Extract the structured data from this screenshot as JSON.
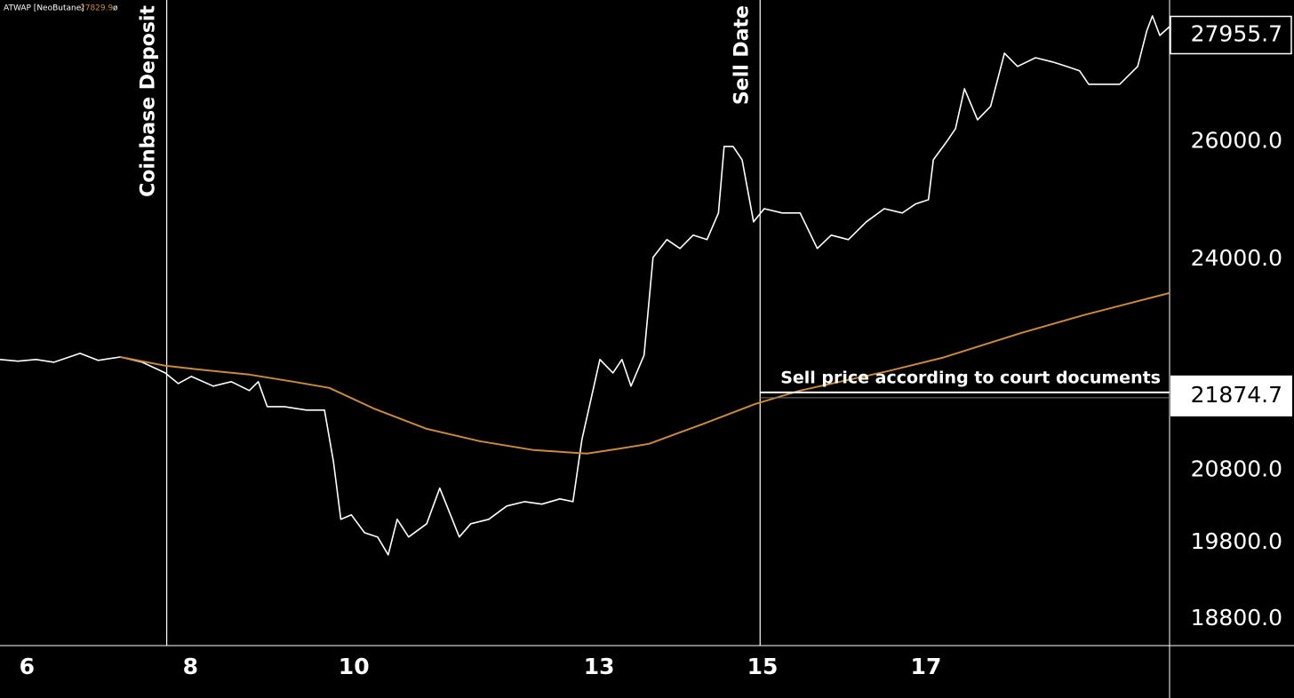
{
  "chart_data": {
    "type": "line",
    "log_y": true,
    "grid": false,
    "background": "#000000",
    "indicator_value": 27829.9,
    "indicator_symbol": "ø",
    "xlim": [
      5.67,
      19.98
    ],
    "xticks": [
      6,
      8,
      10,
      13,
      15,
      17
    ],
    "ylim": [
      18460,
      28630
    ],
    "yticks": [
      {
        "value": 18800,
        "label": "18800.0"
      },
      {
        "value": 19800,
        "label": "19800.0"
      },
      {
        "value": 20800,
        "label": "20800.0"
      },
      {
        "value": 24000,
        "label": "24000.0"
      },
      {
        "value": 26000,
        "label": "26000.0"
      }
    ],
    "last_price": 27955.7,
    "series": [
      {
        "color": "#ffffff",
        "x": [
          5.67,
          5.89,
          6.11,
          6.33,
          6.65,
          6.87,
          7.14,
          7.41,
          7.69,
          7.85,
          8.01,
          8.28,
          8.5,
          8.72,
          8.83,
          8.94,
          9.15,
          9.42,
          9.64,
          9.75,
          9.84,
          9.97,
          10.13,
          10.29,
          10.42,
          10.53,
          10.67,
          10.89,
          11.05,
          11.16,
          11.29,
          11.43,
          11.65,
          11.87,
          12.09,
          12.3,
          12.52,
          12.68,
          12.79,
          12.9,
          13.01,
          13.17,
          13.28,
          13.39,
          13.55,
          13.66,
          13.83,
          13.99,
          14.15,
          14.32,
          14.46,
          14.53,
          14.64,
          14.75,
          14.89,
          15.02,
          15.24,
          15.46,
          15.67,
          15.84,
          16.05,
          16.27,
          16.49,
          16.71,
          16.87,
          17.03,
          17.09,
          17.25,
          17.36,
          17.47,
          17.63,
          17.79,
          17.96,
          18.12,
          18.34,
          18.55,
          18.72,
          18.88,
          18.99,
          19.15,
          19.37,
          19.59,
          19.7,
          19.77,
          19.86,
          19.98
        ],
        "values": [
          22423,
          22397,
          22423,
          22381,
          22517,
          22410,
          22461,
          22381,
          22220,
          22060,
          22166,
          22021,
          22087,
          21955,
          22087,
          21716,
          21716,
          21665,
          21665,
          20919,
          20114,
          20175,
          19932,
          19874,
          19635,
          20114,
          19874,
          20054,
          20545,
          20236,
          19874,
          20054,
          20114,
          20297,
          20358,
          20323,
          20396,
          20358,
          21237,
          21823,
          22423,
          22220,
          22423,
          22021,
          22490,
          24034,
          24327,
          24180,
          24401,
          24327,
          24771,
          25917,
          25917,
          25684,
          24622,
          24844,
          24771,
          24771,
          24180,
          24401,
          24327,
          24622,
          24844,
          24771,
          24921,
          24995,
          25684,
          25996,
          26232,
          26955,
          26391,
          26632,
          27614,
          27366,
          27529,
          27448,
          27366,
          27283,
          27036,
          27036,
          27036,
          27366,
          28033,
          28322,
          27948,
          28117
        ]
      },
      {
        "name": "ATWAP [NeoButane]",
        "color": "#c98a40",
        "x": [
          7.14,
          7.69,
          8.07,
          8.72,
          9.26,
          9.7,
          10.24,
          10.89,
          11.54,
          12.2,
          12.85,
          13.28,
          13.61,
          14.26,
          14.91,
          15.46,
          16.54,
          17.2,
          18.17,
          18.93,
          19.98
        ],
        "values": [
          22461,
          22329,
          22275,
          22195,
          22087,
          21994,
          21690,
          21391,
          21212,
          21084,
          21033,
          21110,
          21174,
          21457,
          21755,
          21955,
          22248,
          22449,
          22833,
          23110,
          23461
        ]
      }
    ],
    "annotations": [
      {
        "x": 7.71,
        "label": "Coinbase Deposit"
      },
      {
        "x": 14.97,
        "label": "Sell Date"
      }
    ],
    "sell_price": {
      "value": 21874.7,
      "x_start": 14.97,
      "label": "Sell price according to court documents"
    }
  }
}
